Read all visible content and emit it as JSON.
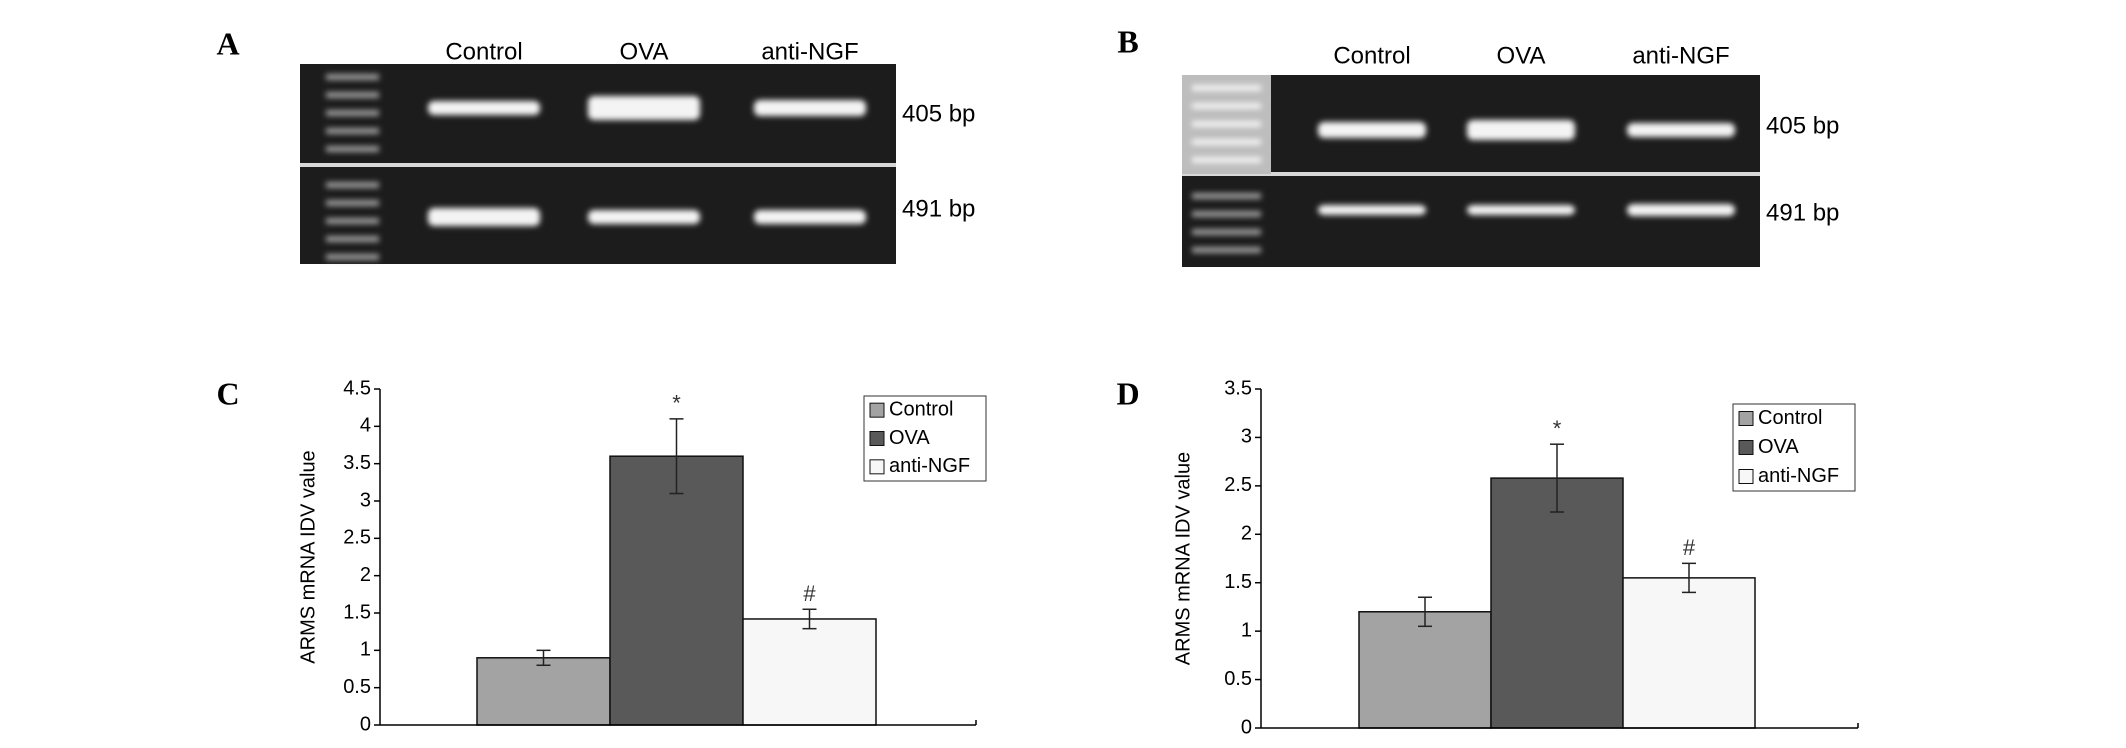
{
  "gels": [
    {
      "panel": "A",
      "lanes": [
        "Control",
        "OVA",
        "anti-NGF"
      ],
      "bands": [
        "405 bp",
        "491 bp"
      ]
    },
    {
      "panel": "B",
      "lanes": [
        "Control",
        "OVA",
        "anti-NGF"
      ],
      "bands": [
        "405 bp",
        "491 bp"
      ]
    }
  ],
  "chart_data": [
    {
      "type": "bar",
      "panel": "C",
      "y_label": "ARMS mRNA IDV value",
      "ylim": [
        0,
        4.5
      ],
      "yticks": [
        0,
        0.5,
        1,
        1.5,
        2,
        2.5,
        3,
        3.5,
        4,
        4.5
      ],
      "legend": "upper right",
      "series": [
        {
          "name": "Control",
          "color": "#a3a3a3",
          "values": [
            0.9
          ],
          "errors": [
            0.1
          ]
        },
        {
          "name": "OVA",
          "color": "#595959",
          "values": [
            3.6
          ],
          "errors": [
            0.5
          ],
          "annotation": "*"
        },
        {
          "name": "anti-NGF",
          "color": "#f7f7f7",
          "values": [
            1.42
          ],
          "errors": [
            0.13
          ],
          "annotation": "#"
        }
      ]
    },
    {
      "type": "bar",
      "panel": "D",
      "y_label": "ARMS mRNA IDV value",
      "ylim": [
        0,
        3.5
      ],
      "yticks": [
        0,
        0.5,
        1,
        1.5,
        2,
        2.5,
        3,
        3.5
      ],
      "legend": "upper right",
      "series": [
        {
          "name": "Control",
          "color": "#a3a3a3",
          "values": [
            1.2
          ],
          "errors": [
            0.15
          ]
        },
        {
          "name": "OVA",
          "color": "#595959",
          "values": [
            2.58
          ],
          "errors": [
            0.35
          ],
          "annotation": "*"
        },
        {
          "name": "anti-NGF",
          "color": "#f7f7f7",
          "values": [
            1.55
          ],
          "errors": [
            0.15
          ],
          "annotation": "#"
        }
      ]
    }
  ]
}
